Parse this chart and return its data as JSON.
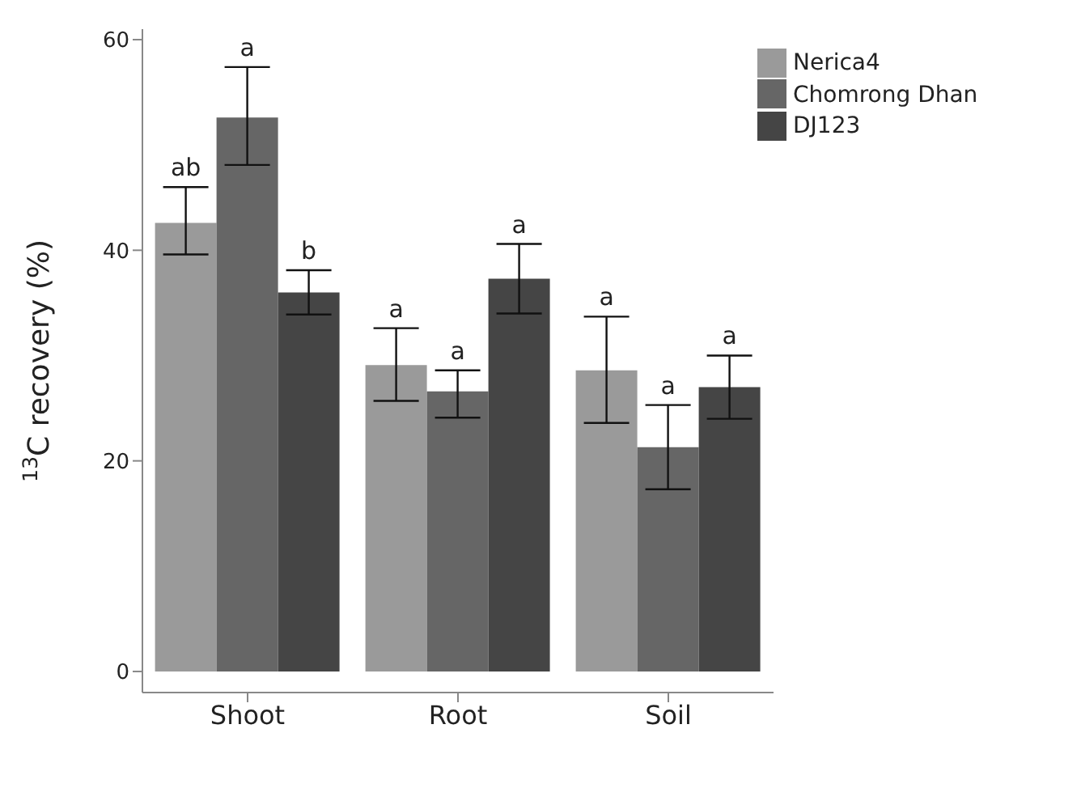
{
  "chart_data": {
    "type": "bar",
    "ylabel": "$^{13}$C recovery (%)",
    "categories": [
      "Shoot",
      "Root",
      "Soil"
    ],
    "series": [
      {
        "name": "Nerica4",
        "color": "#9a9a9a",
        "values": [
          42.6,
          29.1,
          28.6
        ],
        "errors": [
          [
            39.6,
            46.0
          ],
          [
            25.7,
            32.6
          ],
          [
            23.6,
            33.7
          ]
        ]
      },
      {
        "name": "Chomrong Dhan",
        "color": "#666666",
        "values": [
          52.6,
          26.6,
          21.3
        ],
        "errors": [
          [
            48.1,
            57.4
          ],
          [
            24.1,
            28.6
          ],
          [
            17.3,
            25.3
          ]
        ]
      },
      {
        "name": "DJ123",
        "color": "#454545",
        "values": [
          36.0,
          37.3,
          27.0
        ],
        "errors": [
          [
            33.9,
            38.1
          ],
          [
            34.0,
            40.6
          ],
          [
            24.0,
            30.0
          ]
        ]
      }
    ],
    "annotations": [
      "ab",
      "a",
      "a",
      "a",
      "a",
      "a",
      "b",
      "a",
      "a"
    ],
    "ylim": [
      -2,
      61
    ],
    "yticks": [
      0,
      20,
      40,
      60
    ],
    "grid": false,
    "legend": "top right"
  }
}
